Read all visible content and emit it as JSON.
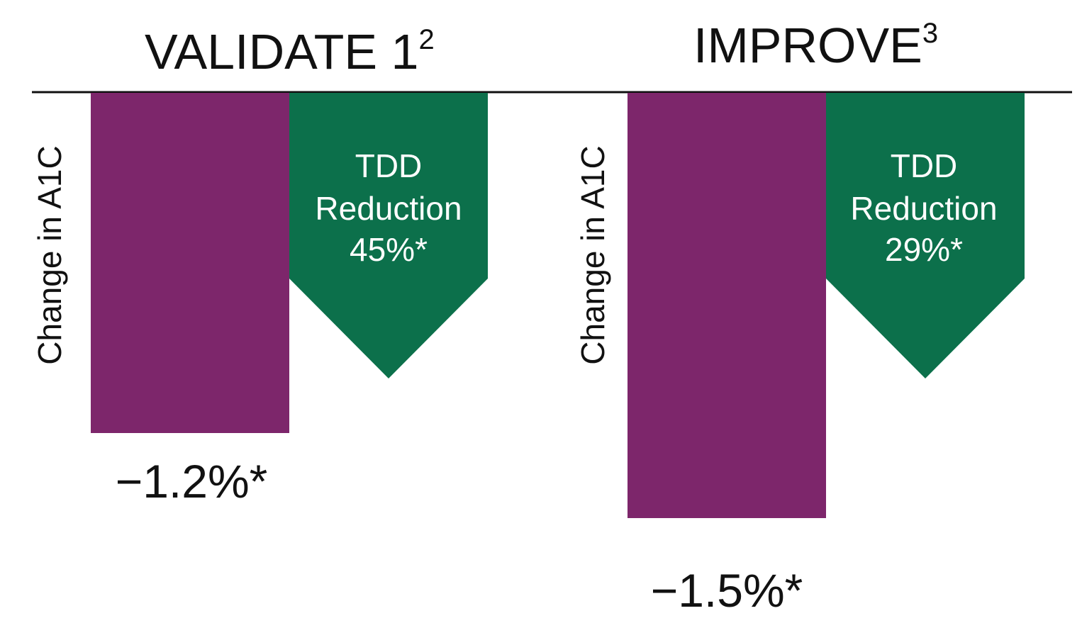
{
  "chart_data": {
    "type": "bar",
    "colors": {
      "a1c_bar": "#7d266b",
      "tdd_arrow": "#0c704b",
      "baseline": "#111111"
    },
    "panels": [
      {
        "title": "VALIDATE 1",
        "title_sup": "2",
        "ylabel": "Change in A1C",
        "a1c_change": -1.2,
        "a1c_label": "−1.2%*",
        "tdd_reduction": 45,
        "tdd_lines": [
          "TDD",
          "Reduction",
          "45%*"
        ]
      },
      {
        "title": "IMPROVE",
        "title_sup": "3",
        "ylabel": "Change in A1C",
        "a1c_change": -1.5,
        "a1c_label": "−1.5%*",
        "tdd_reduction": 29,
        "tdd_lines": [
          "TDD",
          "Reduction",
          "29%*"
        ]
      }
    ]
  }
}
